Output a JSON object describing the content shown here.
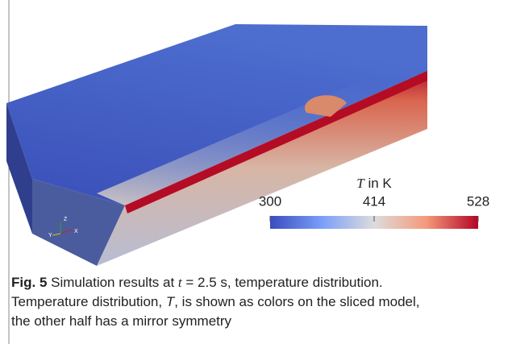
{
  "figure": {
    "colorbar": {
      "label_symbol": "T",
      "label_unit": " in K",
      "lim": [
        300,
        528
      ],
      "ticks": [
        300,
        414,
        528
      ]
    },
    "axes_triad": [
      "Z",
      "Y",
      "X"
    ],
    "caption": {
      "label": "Fig. 5",
      "title_parts": [
        " Simulation results at ",
        "t",
        " = 2.5 s, temperature distribution."
      ],
      "line2_parts": [
        "Temperature distribution, ",
        "T",
        ", is shown as colors on the sliced model,"
      ],
      "line3": "the other half has a mirror symmetry"
    }
  }
}
